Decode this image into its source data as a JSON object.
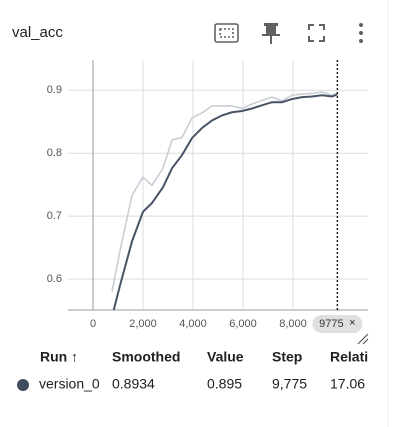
{
  "title": "val_acc",
  "chart_data": {
    "type": "line",
    "x": [
      760,
      1080,
      1560,
      2000,
      2360,
      2800,
      3160,
      3560,
      3960,
      4360,
      4760,
      5160,
      5560,
      5960,
      6360,
      6760,
      7160,
      7560,
      7960,
      8360,
      8760,
      9160,
      9560,
      9775
    ],
    "series": [
      {
        "color": "#c8ced6",
        "values": [
          0.58,
          0.645,
          0.733,
          0.762,
          0.749,
          0.776,
          0.821,
          0.825,
          0.856,
          0.864,
          0.875,
          0.875,
          0.875,
          0.871,
          0.878,
          0.884,
          0.889,
          0.883,
          0.892,
          0.894,
          0.895,
          0.897,
          0.892,
          0.895
        ]
      },
      {
        "color": "#485466",
        "values": [
          0.54,
          0.59,
          0.66,
          0.707,
          0.721,
          0.746,
          0.776,
          0.797,
          0.824,
          0.84,
          0.852,
          0.86,
          0.865,
          0.867,
          0.871,
          0.876,
          0.881,
          0.881,
          0.886,
          0.889,
          0.89,
          0.892,
          0.89,
          0.8934
        ]
      }
    ],
    "xlim": [
      -1000,
      11000
    ],
    "ylim": [
      0.551,
      0.948
    ],
    "xticks": [
      0,
      {
        "value": 2000,
        "label": "2,000"
      },
      {
        "value": 4000,
        "label": "4,000"
      },
      {
        "value": 6000,
        "label": "6,000"
      },
      {
        "value": 8000,
        "label": "8,000"
      }
    ],
    "yticks": [
      0.6,
      0.7,
      0.8,
      0.9
    ],
    "grid": true,
    "cursor": 9775
  },
  "table": {
    "headers": [
      "Run ↑",
      "Smoothed",
      "Value",
      "Step",
      "Relati"
    ],
    "rows": [
      [
        "version_0",
        "0.8934",
        "0.895",
        "9,775",
        "17.06"
      ]
    ]
  }
}
